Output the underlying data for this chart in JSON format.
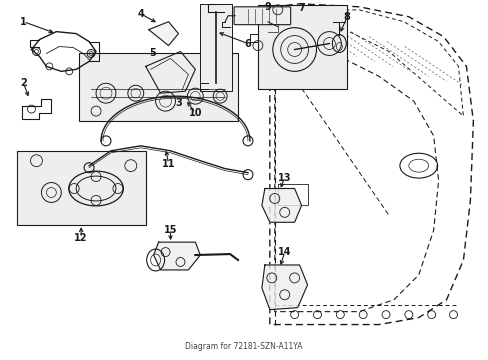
{
  "bg_color": "#ffffff",
  "line_color": "#1a1a1a",
  "fig_width": 4.89,
  "fig_height": 3.6,
  "dpi": 100,
  "subtitle": "Diagram for 72181-SZN-A11YA"
}
